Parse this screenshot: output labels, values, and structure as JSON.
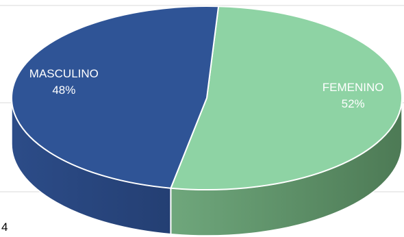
{
  "chart_data": {
    "type": "pie",
    "style": "3d",
    "categories": [
      "FEMENINO",
      "MASCULINO"
    ],
    "values": [
      52,
      48
    ],
    "value_labels": [
      "52%",
      "48%"
    ],
    "colors": [
      "#8ED3A4",
      "#2F5496"
    ],
    "side_colors": [
      "#4D7A55",
      "#243F73"
    ],
    "grid": true,
    "legend": "none"
  },
  "page_number": "4"
}
